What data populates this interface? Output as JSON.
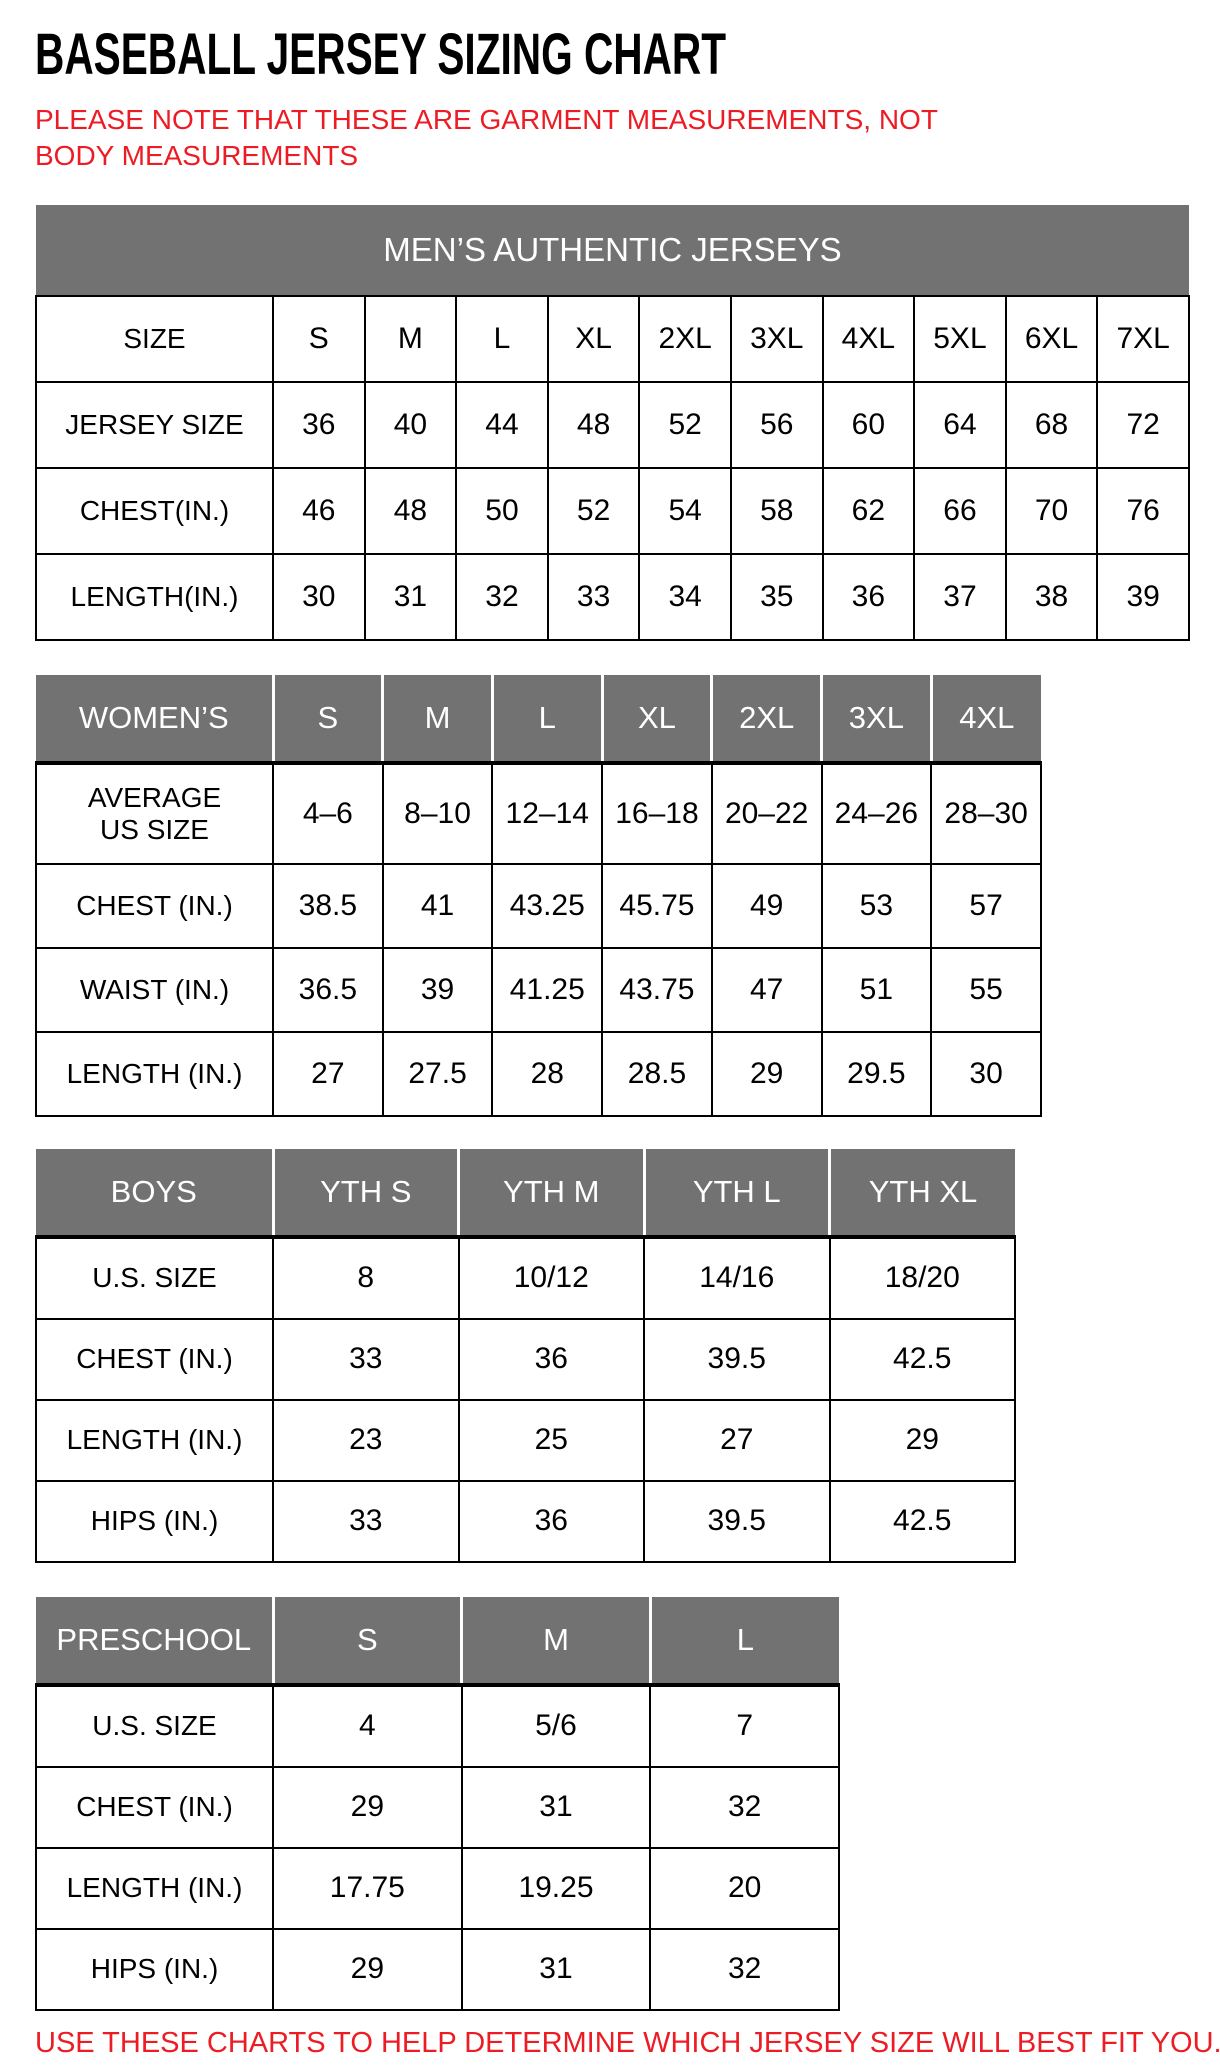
{
  "title": "BASEBALL JERSEY SIZING CHART",
  "note": "PLEASE NOTE THAT THESE ARE GARMENT MEASUREMENTS, NOT BODY MEASUREMENTS",
  "footer": "USE THESE CHARTS TO HELP DETERMINE WHICH JERSEY SIZE WILL BEST FIT YOU.",
  "colors": {
    "header_gray": "#727272",
    "note_red": "#ED1C24",
    "grid_black": "#000000",
    "background": "#ffffff"
  },
  "tables": [
    {
      "name": "mens-authentic-jerseys",
      "banner": "MEN’S AUTHENTIC JERSEYS",
      "rows": [
        {
          "label": "SIZE",
          "values": [
            "S",
            "M",
            "L",
            "XL",
            "2XL",
            "3XL",
            "4XL",
            "5XL",
            "6XL",
            "7XL"
          ]
        },
        {
          "label": "JERSEY SIZE",
          "values": [
            "36",
            "40",
            "44",
            "48",
            "52",
            "56",
            "60",
            "64",
            "68",
            "72"
          ]
        },
        {
          "label": "CHEST(IN.)",
          "values": [
            "46",
            "48",
            "50",
            "52",
            "54",
            "58",
            "62",
            "66",
            "70",
            "76"
          ]
        },
        {
          "label": "LENGTH(IN.)",
          "values": [
            "30",
            "31",
            "32",
            "33",
            "34",
            "35",
            "36",
            "37",
            "38",
            "39"
          ]
        }
      ]
    },
    {
      "name": "womens",
      "header": {
        "label": "WOMEN’S",
        "values": [
          "S",
          "M",
          "L",
          "XL",
          "2XL",
          "3XL",
          "4XL"
        ]
      },
      "rows": [
        {
          "label": "AVERAGE\nUS SIZE",
          "values": [
            "4–6",
            "8–10",
            "12–14",
            "16–18",
            "20–22",
            "24–26",
            "28–30"
          ]
        },
        {
          "label": "CHEST (IN.)",
          "values": [
            "38.5",
            "41",
            "43.25",
            "45.75",
            "49",
            "53",
            "57"
          ]
        },
        {
          "label": "WAIST (IN.)",
          "values": [
            "36.5",
            "39",
            "41.25",
            "43.75",
            "47",
            "51",
            "55"
          ]
        },
        {
          "label": "LENGTH (IN.)",
          "values": [
            "27",
            "27.5",
            "28",
            "28.5",
            "29",
            "29.5",
            "30"
          ]
        }
      ]
    },
    {
      "name": "boys",
      "header": {
        "label": "BOYS",
        "values": [
          "YTH S",
          "YTH M",
          "YTH L",
          "YTH XL"
        ]
      },
      "rows": [
        {
          "label": "U.S. SIZE",
          "values": [
            "8",
            "10/12",
            "14/16",
            "18/20"
          ]
        },
        {
          "label": "CHEST (IN.)",
          "values": [
            "33",
            "36",
            "39.5",
            "42.5"
          ]
        },
        {
          "label": "LENGTH (IN.)",
          "values": [
            "23",
            "25",
            "27",
            "29"
          ]
        },
        {
          "label": "HIPS (IN.)",
          "values": [
            "33",
            "36",
            "39.5",
            "42.5"
          ]
        }
      ]
    },
    {
      "name": "preschool",
      "header": {
        "label": "PRESCHOOL",
        "values": [
          "S",
          "M",
          "L"
        ]
      },
      "rows": [
        {
          "label": "U.S. SIZE",
          "values": [
            "4",
            "5/6",
            "7"
          ]
        },
        {
          "label": "CHEST (IN.)",
          "values": [
            "29",
            "31",
            "32"
          ]
        },
        {
          "label": "LENGTH (IN.)",
          "values": [
            "17.75",
            "19.25",
            "20"
          ]
        },
        {
          "label": "HIPS (IN.)",
          "values": [
            "29",
            "31",
            "32"
          ]
        }
      ]
    }
  ]
}
